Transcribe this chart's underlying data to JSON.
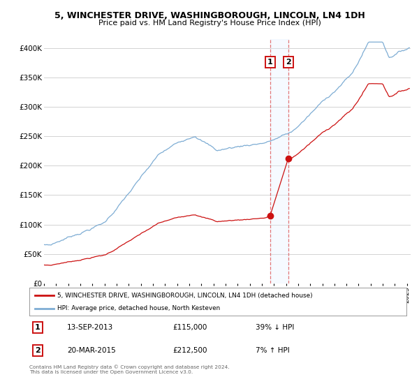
{
  "title": "5, WINCHESTER DRIVE, WASHINGBOROUGH, LINCOLN, LN4 1DH",
  "subtitle": "Price paid vs. HM Land Registry's House Price Index (HPI)",
  "ylabel_ticks": [
    "£0",
    "£50K",
    "£100K",
    "£150K",
    "£200K",
    "£250K",
    "£300K",
    "£350K",
    "£400K"
  ],
  "ytick_values": [
    0,
    50000,
    100000,
    150000,
    200000,
    250000,
    300000,
    350000,
    400000
  ],
  "ylim": [
    0,
    415000
  ],
  "xlim_start": 1995.3,
  "xlim_end": 2025.3,
  "hpi_color": "#7eadd4",
  "sale_color": "#cc1111",
  "vline_color": "#e06060",
  "sale1_x": 2013.7,
  "sale1_y": 115000,
  "sale1_label": "1",
  "sale2_x": 2015.22,
  "sale2_y": 212500,
  "sale2_label": "2",
  "legend_line1": "5, WINCHESTER DRIVE, WASHINGBOROUGH, LINCOLN, LN4 1DH (detached house)",
  "legend_line2": "HPI: Average price, detached house, North Kesteven",
  "table_row1_num": "1",
  "table_row1_date": "13-SEP-2013",
  "table_row1_price": "£115,000",
  "table_row1_hpi": "39% ↓ HPI",
  "table_row2_num": "2",
  "table_row2_date": "20-MAR-2015",
  "table_row2_price": "£212,500",
  "table_row2_hpi": "7% ↑ HPI",
  "footer": "Contains HM Land Registry data © Crown copyright and database right 2024.\nThis data is licensed under the Open Government Licence v3.0.",
  "background_color": "#ffffff",
  "grid_color": "#cccccc",
  "span_color": "#ddeeff"
}
